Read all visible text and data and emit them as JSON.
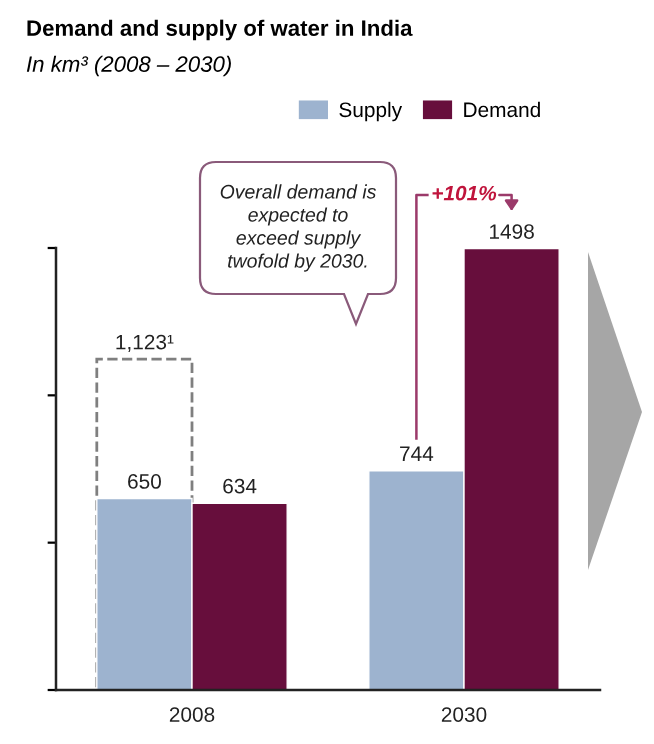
{
  "chart_data": {
    "type": "bar",
    "title": "Demand and supply of water in India",
    "subtitle": "In km³ (2008 – 2030)",
    "categories": [
      "2008",
      "2030"
    ],
    "series": [
      {
        "name": "Supply",
        "color": "#9db3cf",
        "values": [
          650,
          744
        ]
      },
      {
        "color": "#7f7f7f",
        "line_style": "dashed",
        "values": [
          1123,
          null
        ],
        "value_labels": [
          "1,123¹",
          null
        ]
      },
      {
        "name": "Demand",
        "color": "#670e3c",
        "values": [
          634,
          1498
        ]
      }
    ],
    "ylim": [
      0,
      1500
    ],
    "yticks": [
      {
        "value": 0,
        "label": null
      },
      {
        "value": 500,
        "label": null
      },
      {
        "value": 1000,
        "label": null
      },
      {
        "value": 1500,
        "label": null
      }
    ],
    "tick_labels": "x",
    "data_labels": true,
    "legend": "top right",
    "annotations": [
      "Overall demand is\nexpected to\nexceed supply\ntwofold by 2030.",
      "+101%"
    ]
  }
}
